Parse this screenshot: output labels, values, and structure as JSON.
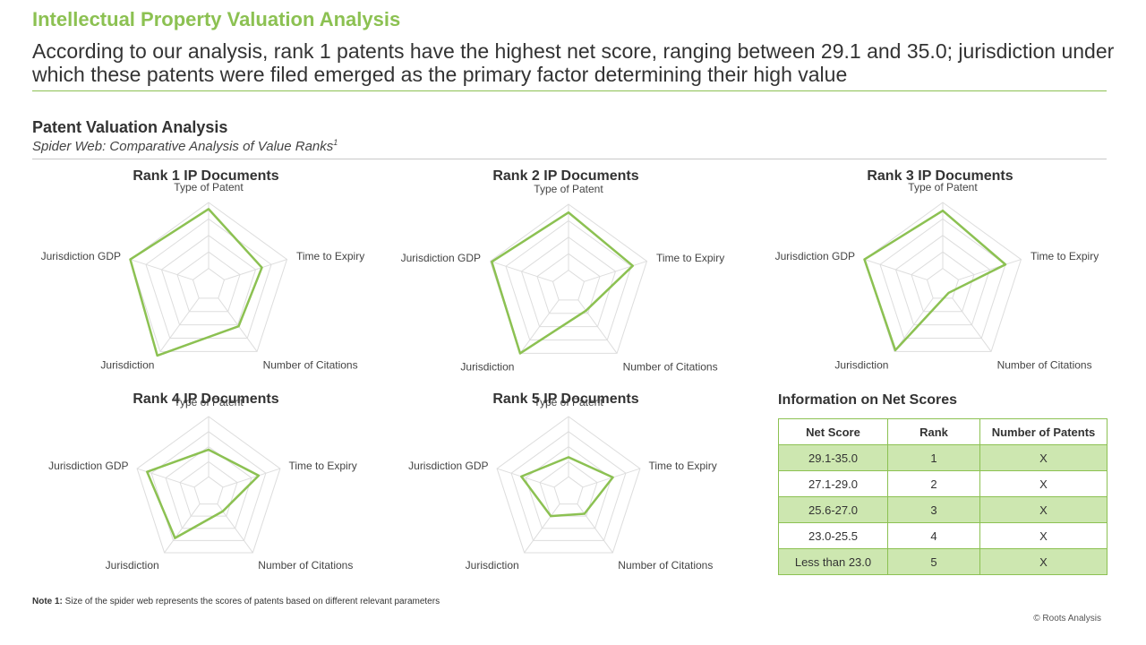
{
  "header": {
    "title": "Intellectual Property Valuation Analysis",
    "subtitle": "According to our analysis, rank 1 patents have the highest net score, ranging between 29.1 and 35.0; jurisdiction under which these patents were filed emerged as the primary factor determining their high value"
  },
  "section": {
    "title": "Patent Valuation Analysis",
    "subtitle": "Spider Web: Comparative Analysis of Value Ranks",
    "footnote_marker": "1"
  },
  "colors": {
    "accent": "#8cc152",
    "grid": "#dddddd",
    "table_fill": "#cde7b0"
  },
  "chart_data": [
    {
      "type": "radar",
      "title": "Rank 1 IP Documents",
      "axes": [
        "Type of Patent",
        "Time to Expiry",
        "Number of Citations",
        "Jurisdiction",
        "Jurisdiction GDP"
      ],
      "values": [
        4.6,
        3.4,
        3.1,
        5.3,
        5.0
      ],
      "range": [
        0,
        5
      ]
    },
    {
      "type": "radar",
      "title": "Rank 2 IP Documents",
      "axes": [
        "Type of Patent",
        "Time to Expiry",
        "Number of Citations",
        "Jurisdiction",
        "Jurisdiction GDP"
      ],
      "values": [
        4.5,
        4.1,
        1.8,
        5.0,
        4.9
      ],
      "range": [
        0,
        5
      ]
    },
    {
      "type": "radar",
      "title": "Rank 3 IP Documents",
      "axes": [
        "Type of Patent",
        "Time to Expiry",
        "Number of Citations",
        "Jurisdiction",
        "Jurisdiction GDP"
      ],
      "values": [
        4.5,
        4.0,
        0.6,
        4.9,
        5.0
      ],
      "range": [
        0,
        5
      ]
    },
    {
      "type": "radar",
      "title": "Rank 4 IP Documents",
      "axes": [
        "Type of Patent",
        "Time to Expiry",
        "Number of Citations",
        "Jurisdiction",
        "Jurisdiction GDP"
      ],
      "values": [
        2.8,
        3.5,
        1.6,
        3.8,
        4.3
      ],
      "range": [
        0,
        5
      ]
    },
    {
      "type": "radar",
      "title": "Rank 5 IP Documents",
      "axes": [
        "Type of Patent",
        "Time to Expiry",
        "Number of Citations",
        "Jurisdiction",
        "Jurisdiction GDP"
      ],
      "values": [
        2.3,
        3.1,
        1.8,
        2.0,
        3.3
      ],
      "range": [
        0,
        5
      ]
    }
  ],
  "net_scores": {
    "title": "Information on Net Scores",
    "headers": [
      "Net Score",
      "Rank",
      "Number of Patents"
    ],
    "rows": [
      [
        "29.1-35.0",
        "1",
        "X"
      ],
      [
        "27.1-29.0",
        "2",
        "X"
      ],
      [
        "25.6-27.0",
        "3",
        "X"
      ],
      [
        "23.0-25.5",
        "4",
        "X"
      ],
      [
        "Less than 23.0",
        "5",
        "X"
      ]
    ]
  },
  "footer": {
    "note_label": "Note 1:",
    "note_text": " Size of the spider web represents the scores of patents based on different relevant parameters",
    "copyright": "© Roots Analysis"
  }
}
